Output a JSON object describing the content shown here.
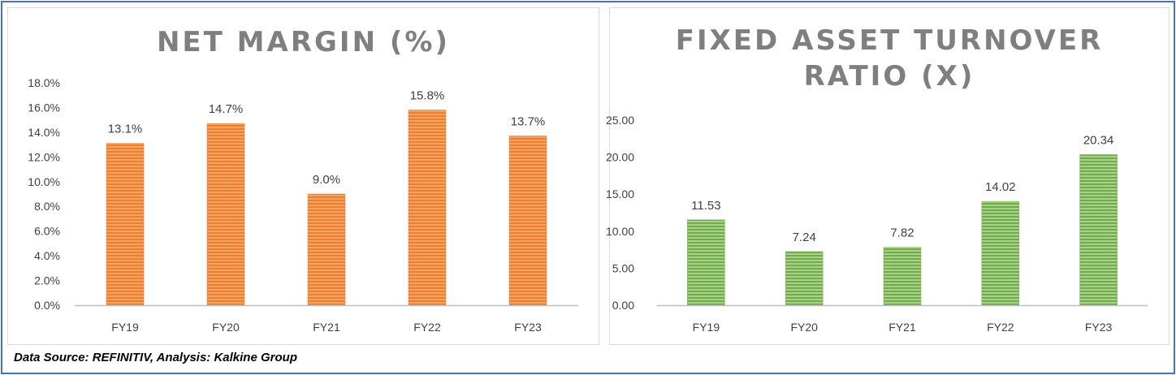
{
  "chart_data": [
    {
      "type": "bar",
      "title": "NET MARGIN (%)",
      "categories": [
        "FY19",
        "FY20",
        "FY21",
        "FY22",
        "FY23"
      ],
      "values": [
        13.1,
        14.7,
        9.0,
        15.8,
        13.7
      ],
      "data_labels": [
        "13.1%",
        "14.7%",
        "9.0%",
        "15.8%",
        "13.7%"
      ],
      "ylim": [
        0,
        18
      ],
      "yticks": [
        0,
        2,
        4,
        6,
        8,
        10,
        12,
        14,
        16,
        18
      ],
      "ytick_labels": [
        "0.0%",
        "2.0%",
        "4.0%",
        "6.0%",
        "8.0%",
        "10.0%",
        "12.0%",
        "14.0%",
        "16.0%",
        "18.0%"
      ],
      "xlabel": "",
      "ylabel": "",
      "grid": false,
      "color": "#f4a460",
      "stripe_color": "#ed7d31"
    },
    {
      "type": "bar",
      "title": "FIXED ASSET TURNOVER\nRATIO (X)",
      "categories": [
        "FY19",
        "FY20",
        "FY21",
        "FY22",
        "FY23"
      ],
      "values": [
        11.53,
        7.24,
        7.82,
        14.02,
        20.34
      ],
      "data_labels": [
        "11.53",
        "7.24",
        "7.82",
        "14.02",
        "20.34"
      ],
      "ylim": [
        0,
        25
      ],
      "yticks": [
        0,
        5,
        10,
        15,
        20,
        25
      ],
      "ytick_labels": [
        "0.00",
        "5.00",
        "10.00",
        "15.00",
        "20.00",
        "25.00"
      ],
      "xlabel": "",
      "ylabel": "",
      "grid": false,
      "color": "#a9d18e",
      "stripe_color": "#70ad47"
    }
  ],
  "footer": {
    "source_text": "Data Source: REFINITIV, Analysis: Kalkine Group"
  }
}
